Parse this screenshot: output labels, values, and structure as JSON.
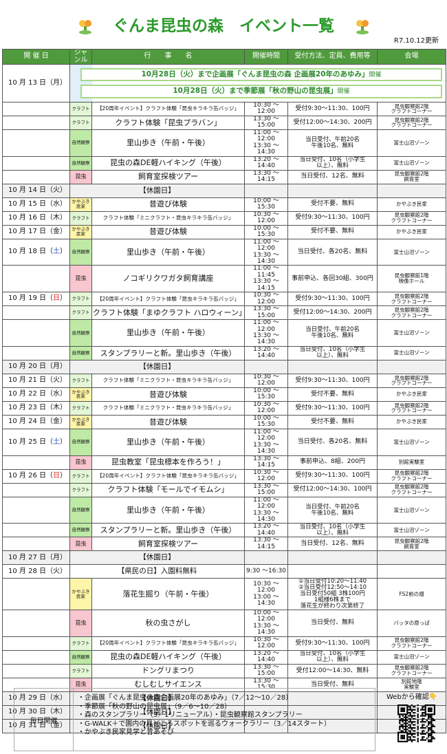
{
  "header": {
    "title": "ぐんま昆虫の森　イベント一覧",
    "updated": "R7.10.12更新"
  },
  "columns": [
    "開 催 日",
    "ジャンル",
    "行　　事　　名",
    "開催時間",
    "受付方法、定員、費用等",
    "会場"
  ],
  "genre_colors": {
    "クラフト": "#e3f6d6",
    "自然観察": "#bfeaa6",
    "昆虫": "#f7c6cf",
    "かやぶき\n民家": "#fff5a8"
  },
  "weekday_colors": {
    "土": "#1f4fd8",
    "日": "#e01b1b"
  },
  "banners": [
    {
      "main": "10月28日（火）まで企画展「ぐんま昆虫の森 企画展20年のあゆみ」",
      "suffix": "開催"
    },
    {
      "main": "10月28日（火）まで季節展「秋の野山の昆虫展」",
      "suffix": "開催"
    }
  ],
  "days": [
    {
      "date": "10 月 13 日（月）",
      "weekday": "月",
      "rows": [
        {
          "genre": "クラフト",
          "event": "【20周年イベント】クラフト体験「昆虫キラキラ缶バッジ」",
          "time": "10:30 ～12:00",
          "reception": "受付9:30～11:30、100円",
          "venue": "昆虫観察館2階\nクラフトコーナー"
        },
        {
          "genre": "クラフト",
          "event": "クラフト体験「昆虫プラバン」",
          "time": "13:30 ～15:00",
          "reception": "受付12:00～14:30、200円",
          "venue": "昆虫観察館2階\nクラフトコーナー"
        },
        {
          "genre": "自然観察",
          "event": "里山歩き（午前・午後）",
          "time": "11:00 ～12:00\n13:30 ～14:30",
          "reception": "当日受付、午前20名\n午後10名、無料",
          "venue": "富士山沼ゾーン"
        },
        {
          "genre": "自然観察",
          "event": "昆虫の森DE軽ハイキング（午後）",
          "time": "13:20 ～14:40",
          "reception": "当日受付、10名（小学生\n以上）、無料",
          "venue": "富士山沼ゾーン"
        },
        {
          "genre": "昆虫",
          "event": "飼育室探検ツアー",
          "time": "13:30 ～14:15",
          "reception": "当日受付、12名、無料",
          "venue": "昆虫観察館2階\n飼育室"
        }
      ]
    },
    {
      "date": "10 月 14 日（火）",
      "weekday": "火",
      "rows": [
        {
          "event": "【休園日】"
        }
      ]
    },
    {
      "date": "10 月 15 日（水）",
      "weekday": "水",
      "rows": [
        {
          "genre": "かやぶき\n民家",
          "event": "昔遊び体験",
          "time": "10:00 ～15:30",
          "reception": "受付不要、無料",
          "venue": "かやぶき民家"
        }
      ]
    },
    {
      "date": "10 月 16 日（木）",
      "weekday": "木",
      "rows": [
        {
          "genre": "クラフト",
          "event": "クラフト体験「ミニクラフト・昆虫キラキラ缶バッジ」",
          "time": "10:30 ～12:00",
          "reception": "受付9:30～11:30、100円",
          "venue": "昆虫観察館2階\nクラフトコーナー"
        }
      ]
    },
    {
      "date": "10 月 17 日（金）",
      "weekday": "金",
      "rows": [
        {
          "genre": "かやぶき\n民家",
          "event": "昔遊び体験",
          "time": "10:00 ～15:30",
          "reception": "受付不要、無料",
          "venue": "かやぶき民家"
        }
      ]
    },
    {
      "date": "10 月 18 日（土）",
      "weekday": "土",
      "rows": [
        {
          "genre": "自然観察",
          "event": "里山歩き（午前・午後）",
          "time": "11:00 ～12:00\n13:30 ～14:30",
          "reception": "当日受付、各20名、無料",
          "venue": "富士山沼ゾーン"
        },
        {
          "genre": "昆虫",
          "event": "ノコギリクワガタ飼育講座",
          "time": "11:00 ～11:45\n13:30 ～14:15",
          "reception": "事前申込、各回30組、300円",
          "venue": "昆虫観察館1階\n映像ホール"
        }
      ]
    },
    {
      "date": "10 月 19 日（日）",
      "weekday": "日",
      "rows": [
        {
          "genre": "クラフト",
          "event": "【20周年イベント】クラフト体験「昆虫キラキラ缶バッジ」",
          "time": "10:30 ～12:00",
          "reception": "受付9:30～11:30、100円",
          "venue": "昆虫観察館2階\nクラフトコーナー"
        },
        {
          "genre": "クラフト",
          "event": "クラフト体験「まゆクラフト ハロウィーン」",
          "time": "13:30 ～15:00",
          "reception": "受付12:00～14:30、200円",
          "venue": "昆虫観察館2階\nクラフトコーナー"
        },
        {
          "genre": "自然観察",
          "event": "里山歩き（午前・午後）",
          "time": "11:00 ～12:00\n13:30 ～14:30",
          "reception": "当日受付、午前20名\n午後10名、無料",
          "venue": "富士山沼ゾーン"
        },
        {
          "genre": "自然観察",
          "event": "スタンプラリーと新。里山歩き（午後）",
          "time": "13:20 ～14:40",
          "reception": "当日受付、10名（小学生\n以上）、無料",
          "venue": "富士山沼ゾーン"
        }
      ]
    },
    {
      "date": "10 月 20 日（月）",
      "weekday": "月",
      "rows": [
        {
          "event": "【休園日】"
        }
      ]
    },
    {
      "date": "10 月 21 日（火）",
      "weekday": "火",
      "rows": [
        {
          "genre": "クラフト",
          "event": "クラフト体験「ミニクラフト・昆虫キラキラ缶バッジ」",
          "time": "10:30 ～12:00",
          "reception": "受付9:30～11:30、100円",
          "venue": "昆虫観察館2階\nクラフトコーナー"
        }
      ]
    },
    {
      "date": "10 月 22 日（水）",
      "weekday": "水",
      "rows": [
        {
          "genre": "かやぶき\n民家",
          "event": "昔遊び体験",
          "time": "10:00 ～15:30",
          "reception": "受付不要、無料",
          "venue": "かやぶき民家"
        }
      ]
    },
    {
      "date": "10 月 23 日（木）",
      "weekday": "木",
      "rows": [
        {
          "genre": "クラフト",
          "event": "クラフト体験「ミニクラフト・昆虫キラキラ缶バッジ」",
          "time": "10:30 ～12:00",
          "reception": "受付9:30～11:30、100円",
          "venue": "昆虫観察館2階\nクラフトコーナー"
        }
      ]
    },
    {
      "date": "10 月 24 日（金）",
      "weekday": "金",
      "rows": [
        {
          "genre": "かやぶき\n民家",
          "event": "昔遊び体験",
          "time": "10:00 ～15:30",
          "reception": "受付不要、無料",
          "venue": "かやぶき民家"
        }
      ]
    },
    {
      "date": "10 月 25 日（土）",
      "weekday": "土",
      "rows": [
        {
          "genre": "自然観察",
          "event": "里山歩き（午前・午後）",
          "time": "11:00 ～12:00\n13:30 ～14:30",
          "reception": "当日受付、各20名、無料",
          "venue": "富士山沼ゾーン"
        },
        {
          "genre": "昆虫",
          "event": "昆虫教室「昆虫標本を作ろう！」",
          "time": "13:30 ～14:15",
          "reception": "事前申込、8組、200円",
          "venue": "別館実験室"
        }
      ]
    },
    {
      "date": "10 月 26 日（日）",
      "weekday": "日",
      "rows": [
        {
          "genre": "クラフト",
          "event": "【20周年イベント】クラフト体験「昆虫キラキラ缶バッジ」",
          "time": "10:30 ～12:00",
          "reception": "受付9:30～11:30、100円",
          "venue": "昆虫観察館2階\nクラフトコーナー"
        },
        {
          "genre": "クラフト",
          "event": "クラフト体験「モールでイモムシ」",
          "time": "13:30 ～15:00",
          "reception": "受付12:00～14:30、100円",
          "venue": "昆虫観察館2階\nクラフトコーナー"
        },
        {
          "genre": "自然観察",
          "event": "里山歩き（午前・午後）",
          "time": "11:00 ～12:00\n13:30 ～14:30",
          "reception": "当日受付、午前20名\n午後10名、無料",
          "venue": "富士山沼ゾーン"
        },
        {
          "genre": "自然観察",
          "event": "スタンプラリーと新。里山歩き（午後）",
          "time": "13:20 ～14:40",
          "reception": "当日受付、10名（小学生\n以上）、無料",
          "venue": "富士山沼ゾーン"
        },
        {
          "genre": "昆虫",
          "event": "飼育室探検ツアー",
          "time": "13:30 ～14:15",
          "reception": "当日受付、12名、無料",
          "venue": "昆虫観察館2階\n飼育室"
        }
      ]
    },
    {
      "date": "10 月 27 日（月）",
      "weekday": "月",
      "rows": [
        {
          "event": "【休園日】"
        }
      ]
    },
    {
      "date": "10 月 28 日（火）",
      "weekday": "火",
      "rows": [
        {
          "event": "【県民の日】入園料無料",
          "time": "9:30 ～16:30"
        },
        {
          "genre": "かやぶき\n民家",
          "event": "落花生掘り（午前・午後）",
          "time": "10:30 ～12:00\n13:00 ～14:30",
          "reception": "①当日受付10:20～11:40\n②当日受付12:50～14:10\n当日受付50組 3株100円\n1組様6株まで\n落花生が終わり次第終了",
          "venue": "FS2前の畑"
        },
        {
          "genre": "昆虫",
          "event": "秋の虫さがし",
          "time": "10:00 ～12:00\n13:30 ～14:30",
          "reception": "当日受付、無料",
          "venue": "バッタの原っぱ"
        },
        {
          "genre": "クラフト",
          "event": "【20周年イベント】クラフト体験「昆虫キラキラ缶バッジ」",
          "time": "10:30 ～12:00",
          "reception": "受付9:30～11:30、100円",
          "venue": "昆虫観察館2階\nクラフトコーナー"
        },
        {
          "genre": "自然観察",
          "event": "昆虫の森DE軽ハイキング（午後）",
          "time": "13:20 ～14:40",
          "reception": "当日受付、10名（小学生\n以上）、無料",
          "venue": "富士山沼ゾーン"
        },
        {
          "genre": "クラフト",
          "event": "ドングリまつり",
          "time": "13:30 ～15:00",
          "reception": "受付12:00～14:30、無料",
          "venue": "昆虫観察館2階\nクラフトコーナー"
        },
        {
          "genre": "昆虫",
          "event": "むしむしサイエンス",
          "time": "13:30 ～15:30",
          "reception": "当日受付、無料",
          "venue": "別館地階\n実験室"
        }
      ]
    },
    {
      "date": "10 月 29 日（水）",
      "weekday": "水",
      "rows": [
        {
          "event": "【休園日】"
        }
      ]
    },
    {
      "date": "10 月 30 日（木）",
      "weekday": "木",
      "rows": [
        {
          "event": "【休園日】"
        }
      ]
    },
    {
      "date": "10 月 31 日（金）",
      "weekday": "金",
      "rows": [
        {
          "event": "【休園日】"
        }
      ]
    }
  ],
  "footer": {
    "label": "毎日開催",
    "items": [
      "・企画展「ぐんま昆虫の森企画展20年のあゆみ」（7／12～10／28）",
      "・季節展「秋の野山の昆虫展」（9／6～10／28）",
      "・森のスタンプラリー（3／1リニューアル）・昆虫観察館スタンプラリー",
      "・G-WALK＋で園内の見どころスポットを巡るウォークラリー（3／14スタート）",
      "・かやぶき民家見学と昔あそび"
    ],
    "web": "Webから確認👇"
  }
}
